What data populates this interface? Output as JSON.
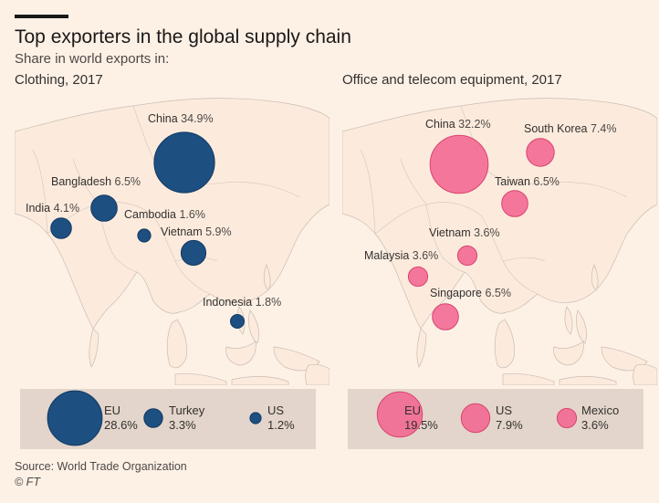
{
  "header": {
    "title": "Top exporters in the global supply chain",
    "subtitle": "Share in world exports in:"
  },
  "panels": [
    {
      "title": "Clothing, 2017",
      "color": "#1d4f80",
      "map_bubbles": [
        {
          "name": "China",
          "value": "34.9%",
          "share": 34.9
        },
        {
          "name": "Bangladesh",
          "value": "6.5%",
          "share": 6.5
        },
        {
          "name": "India",
          "value": "4.1%",
          "share": 4.1
        },
        {
          "name": "Cambodia",
          "value": "1.6%",
          "share": 1.6
        },
        {
          "name": "Vietnam",
          "value": "5.9%",
          "share": 5.9
        },
        {
          "name": "Indonesia",
          "value": "1.8%",
          "share": 1.8
        }
      ],
      "legend": [
        {
          "name": "EU",
          "value": "28.6%",
          "share": 28.6
        },
        {
          "name": "Turkey",
          "value": "3.3%",
          "share": 3.3
        },
        {
          "name": "US",
          "value": "1.2%",
          "share": 1.2
        }
      ]
    },
    {
      "title": "Office and telecom equipment, 2017",
      "color": "#f2638f",
      "map_bubbles": [
        {
          "name": "China",
          "value": "32.2%",
          "share": 32.2
        },
        {
          "name": "South Korea",
          "value": "7.4%",
          "share": 7.4
        },
        {
          "name": "Taiwan",
          "value": "6.5%",
          "share": 6.5
        },
        {
          "name": "Vietnam",
          "value": "3.6%",
          "share": 3.6
        },
        {
          "name": "Malaysia",
          "value": "3.6%",
          "share": 3.6
        },
        {
          "name": "Singapore",
          "value": "6.5%",
          "share": 6.5
        }
      ],
      "legend": [
        {
          "name": "EU",
          "value": "19.5%",
          "share": 19.5
        },
        {
          "name": "US",
          "value": "7.9%",
          "share": 7.9
        },
        {
          "name": "Mexico",
          "value": "3.6%",
          "share": 3.6
        }
      ]
    }
  ],
  "footer": {
    "source": "Source: World Trade Organization",
    "credit": "© FT"
  }
}
